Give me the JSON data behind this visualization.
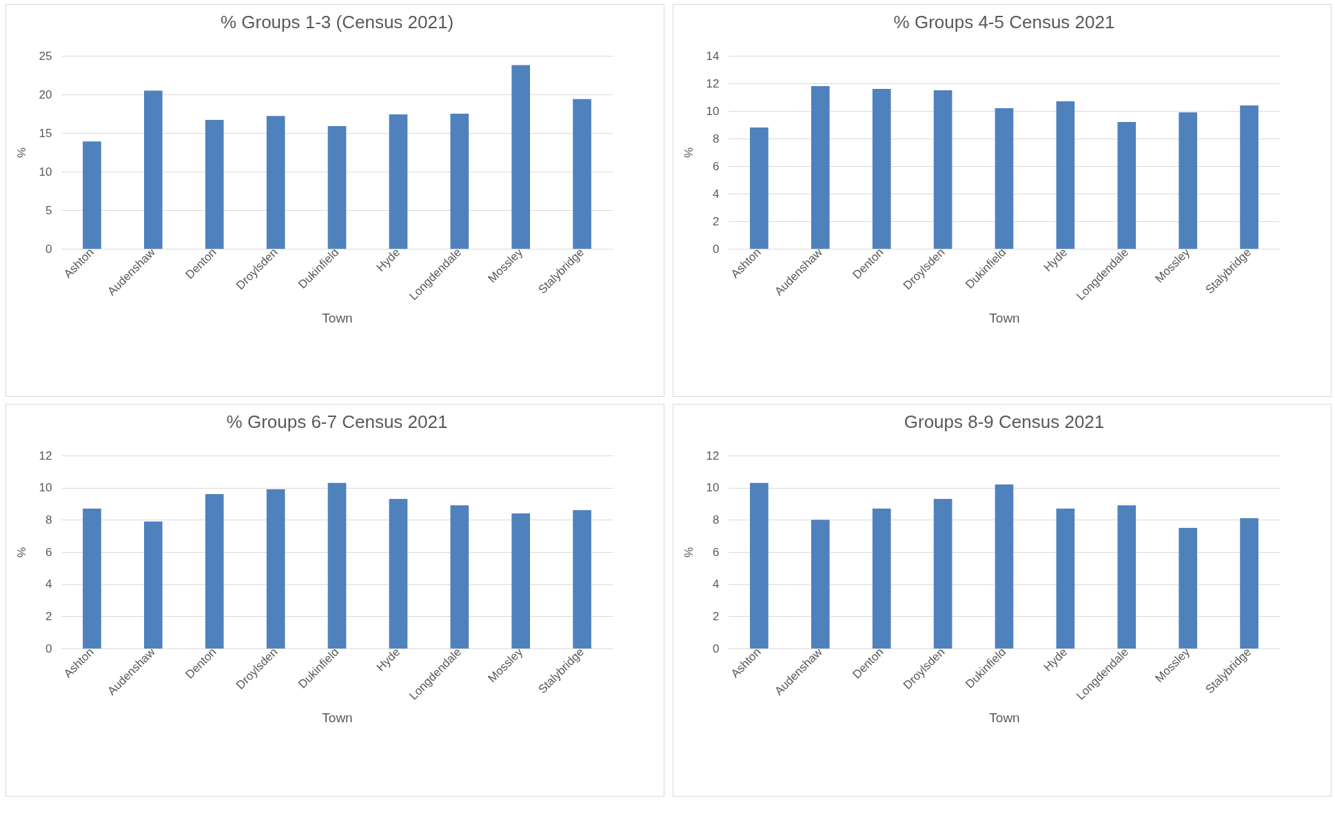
{
  "chart_data": [
    {
      "type": "bar",
      "title": "% Groups 1-3 (Census 2021)",
      "xlabel": "Town",
      "ylabel": "%",
      "categories": [
        "Ashton",
        "Audenshaw",
        "Denton",
        "Droylsden",
        "Dukinfield",
        "Hyde",
        "Longdendale",
        "Mossley",
        "Stalybridge"
      ],
      "values": [
        13.9,
        20.5,
        16.7,
        17.2,
        15.9,
        17.4,
        17.5,
        23.8,
        19.4
      ],
      "color": "#4f81bd",
      "ylim": [
        0,
        25
      ],
      "yticks": [
        0,
        5,
        10,
        15,
        20,
        25
      ],
      "grid": "y"
    },
    {
      "type": "bar",
      "title": "% Groups 4-5 Census 2021",
      "xlabel": "Town",
      "ylabel": "%",
      "categories": [
        "Ashton",
        "Audenshaw",
        "Denton",
        "Droylsden",
        "Dukinfield",
        "Hyde",
        "Longdendale",
        "Mossley",
        "Stalybridge"
      ],
      "values": [
        8.8,
        11.8,
        11.6,
        11.5,
        10.2,
        10.7,
        9.2,
        9.9,
        10.4
      ],
      "color": "#4f81bd",
      "ylim": [
        0,
        14
      ],
      "yticks": [
        0,
        2,
        4,
        6,
        8,
        10,
        12,
        14
      ],
      "grid": "y"
    },
    {
      "type": "bar",
      "title": "% Groups 6-7 Census 2021",
      "xlabel": "Town",
      "ylabel": "%",
      "categories": [
        "Ashton",
        "Audenshaw",
        "Denton",
        "Droylsden",
        "Dukinfield",
        "Hyde",
        "Longdendale",
        "Mossley",
        "Stalybridge"
      ],
      "values": [
        8.7,
        7.9,
        9.6,
        9.9,
        10.3,
        9.3,
        8.9,
        8.4,
        8.6
      ],
      "color": "#4f81bd",
      "ylim": [
        0,
        12
      ],
      "yticks": [
        0,
        2,
        4,
        6,
        8,
        10,
        12
      ],
      "grid": "y"
    },
    {
      "type": "bar",
      "title": "Groups 8-9 Census 2021",
      "xlabel": "Town",
      "ylabel": "%",
      "categories": [
        "Ashton",
        "Audenshaw",
        "Denton",
        "Droylsden",
        "Dukinfield",
        "Hyde",
        "Longdendale",
        "Mossley",
        "Stalybridge"
      ],
      "values": [
        10.3,
        8.0,
        8.7,
        9.3,
        10.2,
        8.7,
        8.9,
        7.5,
        8.1
      ],
      "color": "#4f81bd",
      "ylim": [
        0,
        12
      ],
      "yticks": [
        0,
        2,
        4,
        6,
        8,
        10,
        12
      ],
      "grid": "y"
    }
  ]
}
